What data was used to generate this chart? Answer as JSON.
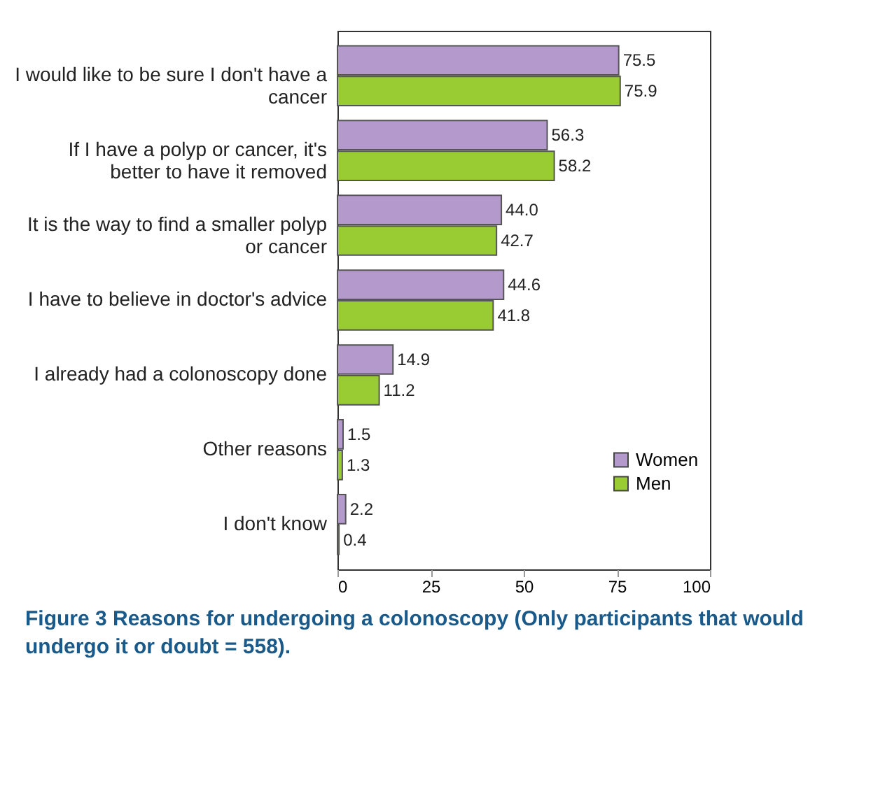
{
  "chart_data": {
    "type": "bar",
    "orientation": "horizontal",
    "categories": [
      "I would like to be sure I don't have a cancer",
      "If I have a polyp or cancer, it's better to have it removed",
      "It is the way to find a smaller polyp or cancer",
      "I have to believe in doctor's advice",
      "I already had a colonoscopy done",
      "Other reasons",
      "I don't know"
    ],
    "series": [
      {
        "name": "Women",
        "color": "#b399cc",
        "values": [
          75.5,
          56.3,
          44.0,
          44.6,
          14.9,
          1.5,
          2.2
        ],
        "value_labels": [
          "75.5",
          "56.3",
          "44.0",
          "44.6",
          "14.9",
          "1.5",
          "2.2"
        ]
      },
      {
        "name": "Men",
        "color": "#99cc33",
        "values": [
          75.9,
          58.2,
          42.7,
          41.8,
          11.2,
          1.3,
          0.4
        ],
        "value_labels": [
          "75.9",
          "58.2",
          "42.7",
          "41.8",
          "11.2",
          "1.3",
          "0.4"
        ]
      }
    ],
    "xlim": [
      0,
      100
    ],
    "xticks": [
      0,
      25,
      50,
      75,
      100
    ],
    "grid": false,
    "legend": "bottom right",
    "annotations": [
      "Figure 3 Reasons for undergoing a colonoscopy (Only participants that would undergo it or doubt = 558)."
    ]
  }
}
